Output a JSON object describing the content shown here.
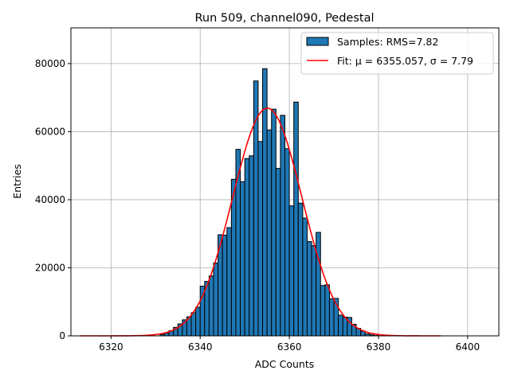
{
  "chart_data": {
    "type": "bar",
    "title": "Run 509, channel090, Pedestal",
    "xlabel": "ADC Counts",
    "ylabel": "Entries",
    "xlim": [
      6311,
      6407
    ],
    "ylim": [
      0,
      90500
    ],
    "xticks": [
      6320,
      6340,
      6360,
      6380,
      6400
    ],
    "yticks": [
      0,
      20000,
      40000,
      60000,
      80000
    ],
    "grid": true,
    "legend_position": "top-right",
    "histogram": {
      "name": "Samples: RMS=7.82",
      "color": "#1f77b4",
      "bin_edges": [
        6331.0,
        6332.0,
        6333.0,
        6334.0,
        6335.0,
        6336.0,
        6337.0,
        6338.0,
        6339.0,
        6340.0,
        6341.0,
        6342.0,
        6343.0,
        6344.0,
        6345.0,
        6346.0,
        6347.0,
        6348.0,
        6349.0,
        6350.0,
        6351.0,
        6352.0,
        6353.0,
        6354.0,
        6355.0,
        6356.0,
        6357.0,
        6358.0,
        6359.0,
        6360.0,
        6361.0,
        6362.0,
        6363.0,
        6364.0,
        6365.0,
        6366.0,
        6367.0,
        6368.0,
        6369.0,
        6370.0,
        6371.0,
        6372.0,
        6373.0,
        6374.0,
        6375.0,
        6376.0,
        6377.0,
        6378.0,
        6379.0,
        6380.0
      ],
      "counts": [
        400,
        800,
        1500,
        2500,
        3500,
        4700,
        5600,
        6800,
        8400,
        14600,
        16000,
        17600,
        21400,
        29700,
        29600,
        31800,
        46000,
        54800,
        45300,
        52100,
        52900,
        74900,
        57100,
        78500,
        60500,
        66600,
        49200,
        64800,
        55000,
        38200,
        68700,
        39000,
        34600,
        27700,
        26500,
        30400,
        14800,
        15000,
        10900,
        11000,
        6100,
        5500,
        5400,
        3400,
        2200,
        1400,
        600,
        300,
        100
      ]
    },
    "fit": {
      "name": "Fit: μ = 6355.057, σ = 7.79",
      "color": "#ff0000",
      "mu": 6355.057,
      "sigma": 7.79,
      "amplitude": 66900,
      "x_range": [
        6313,
        6394
      ]
    }
  }
}
